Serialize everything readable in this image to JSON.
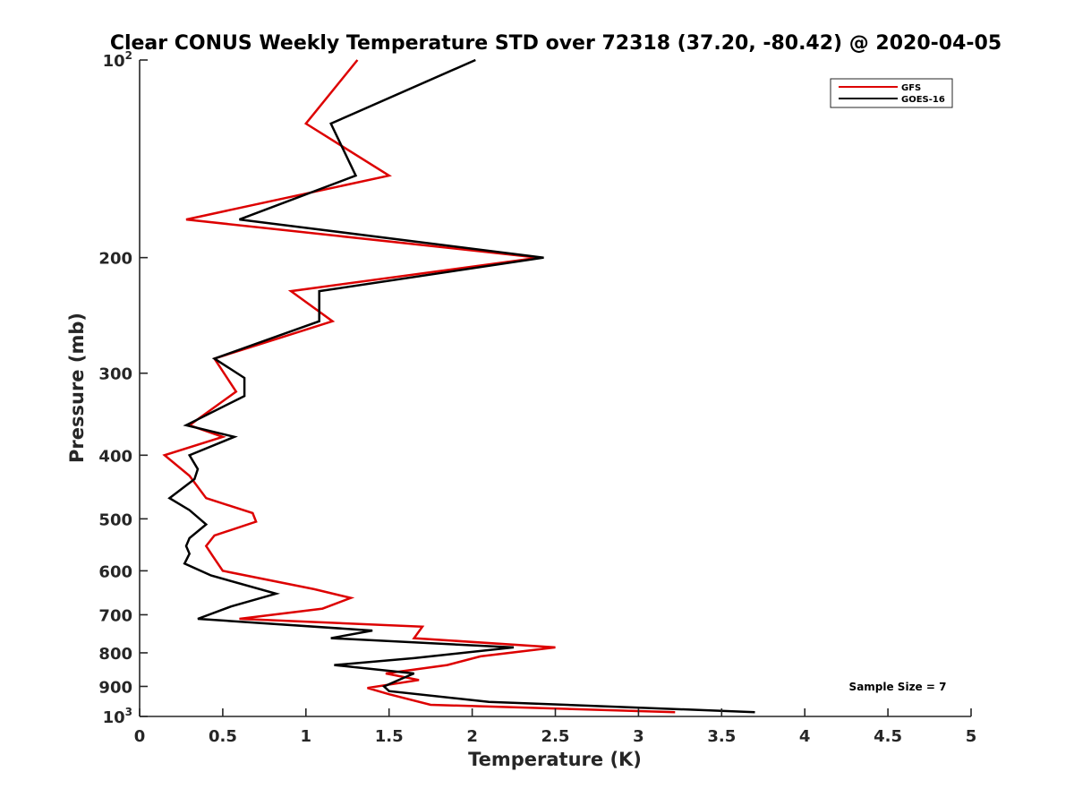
{
  "chart_data": {
    "type": "line",
    "title": "Clear CONUS Weekly Temperature STD over 72318 (37.20, -80.42) @ 2020-04-05",
    "xlabel": "Temperature (K)",
    "ylabel": "Pressure (mb)",
    "xlim": [
      0,
      5
    ],
    "ylim": [
      100,
      1000
    ],
    "y_scale": "log",
    "y_reversed": true,
    "grid": false,
    "legend_position": "top-right",
    "x_ticks": [
      {
        "value": 0,
        "label": "0"
      },
      {
        "value": 0.5,
        "label": "0.5"
      },
      {
        "value": 1,
        "label": "1"
      },
      {
        "value": 1.5,
        "label": "1.5"
      },
      {
        "value": 2,
        "label": "2"
      },
      {
        "value": 2.5,
        "label": "2.5"
      },
      {
        "value": 3,
        "label": "3"
      },
      {
        "value": 3.5,
        "label": "3.5"
      },
      {
        "value": 4,
        "label": "4"
      },
      {
        "value": 4.5,
        "label": "4.5"
      },
      {
        "value": 5,
        "label": "5"
      }
    ],
    "y_ticks": [
      {
        "value": 100,
        "label": "10",
        "sup": "2"
      },
      {
        "value": 200,
        "label": "200"
      },
      {
        "value": 300,
        "label": "300"
      },
      {
        "value": 400,
        "label": "400"
      },
      {
        "value": 500,
        "label": "500"
      },
      {
        "value": 600,
        "label": "600"
      },
      {
        "value": 700,
        "label": "700"
      },
      {
        "value": 800,
        "label": "800"
      },
      {
        "value": 900,
        "label": "900"
      },
      {
        "value": 1000,
        "label": "10",
        "sup": "3"
      }
    ],
    "series": [
      {
        "name": "GFS",
        "color": "#dd0000",
        "points": [
          [
            1.31,
            100
          ],
          [
            1.0,
            125
          ],
          [
            1.5,
            150
          ],
          [
            0.28,
            175
          ],
          [
            2.4,
            200
          ],
          [
            0.91,
            225
          ],
          [
            1.16,
            250
          ],
          [
            0.45,
            285
          ],
          [
            0.58,
            320
          ],
          [
            0.3,
            360
          ],
          [
            0.5,
            375
          ],
          [
            0.15,
            400
          ],
          [
            0.3,
            430
          ],
          [
            0.4,
            465
          ],
          [
            0.68,
            490
          ],
          [
            0.7,
            505
          ],
          [
            0.45,
            530
          ],
          [
            0.4,
            550
          ],
          [
            0.44,
            570
          ],
          [
            0.5,
            600
          ],
          [
            1.05,
            640
          ],
          [
            1.27,
            660
          ],
          [
            1.1,
            685
          ],
          [
            0.6,
            710
          ],
          [
            1.7,
            730
          ],
          [
            1.65,
            760
          ],
          [
            2.5,
            785
          ],
          [
            2.05,
            810
          ],
          [
            1.85,
            835
          ],
          [
            1.48,
            860
          ],
          [
            1.68,
            880
          ],
          [
            1.37,
            905
          ],
          [
            1.5,
            925
          ],
          [
            1.75,
            960
          ],
          [
            3.22,
            985
          ]
        ]
      },
      {
        "name": "GOES-16",
        "color": "#000000",
        "points": [
          [
            2.02,
            100
          ],
          [
            1.15,
            125
          ],
          [
            1.3,
            150
          ],
          [
            0.6,
            175
          ],
          [
            2.43,
            200
          ],
          [
            1.08,
            225
          ],
          [
            1.08,
            250
          ],
          [
            0.45,
            285
          ],
          [
            0.63,
            305
          ],
          [
            0.63,
            325
          ],
          [
            0.28,
            360
          ],
          [
            0.57,
            375
          ],
          [
            0.3,
            400
          ],
          [
            0.35,
            420
          ],
          [
            0.33,
            435
          ],
          [
            0.18,
            465
          ],
          [
            0.3,
            485
          ],
          [
            0.4,
            510
          ],
          [
            0.3,
            535
          ],
          [
            0.28,
            550
          ],
          [
            0.3,
            565
          ],
          [
            0.27,
            585
          ],
          [
            0.43,
            610
          ],
          [
            0.82,
            650
          ],
          [
            0.55,
            680
          ],
          [
            0.35,
            710
          ],
          [
            1.4,
            740
          ],
          [
            1.15,
            760
          ],
          [
            2.25,
            785
          ],
          [
            1.65,
            815
          ],
          [
            1.17,
            835
          ],
          [
            1.65,
            860
          ],
          [
            1.58,
            875
          ],
          [
            1.47,
            900
          ],
          [
            1.5,
            915
          ],
          [
            2.1,
            950
          ],
          [
            3.7,
            985
          ]
        ]
      }
    ],
    "annotations": [
      {
        "text": "Sample Size = 7"
      }
    ]
  }
}
